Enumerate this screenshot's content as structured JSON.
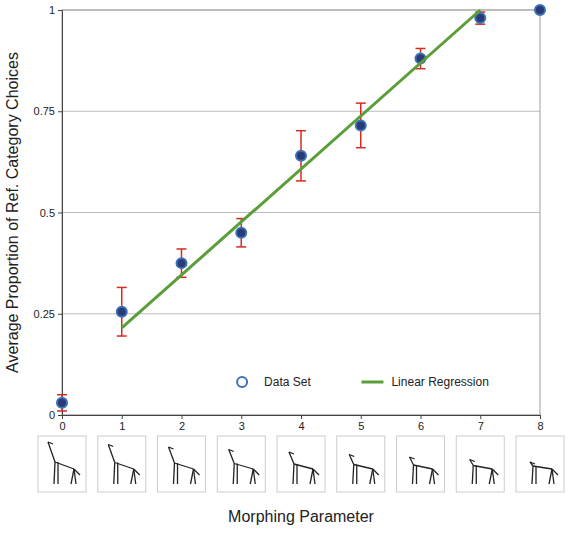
{
  "chart_data": {
    "type": "scatter",
    "x_label": "Morphing Parameter",
    "y_label": "Average Proportion of Ref. Category Choices",
    "xlim": [
      0,
      8
    ],
    "xticks": [
      0,
      1,
      2,
      3,
      4,
      5,
      6,
      7,
      8
    ],
    "ylim": [
      0,
      1
    ],
    "yticks": [
      0,
      0.25,
      0.5,
      0.75,
      1
    ],
    "grid": true,
    "legend": "bottom",
    "series": [
      {
        "name": "Data Set",
        "type": "scatter",
        "color": "#3b72b5",
        "marker": "circle",
        "x": [
          0,
          1,
          2,
          3,
          4,
          5,
          6,
          7,
          8
        ],
        "values": [
          0.03,
          0.255,
          0.375,
          0.45,
          0.64,
          0.715,
          0.88,
          0.98,
          1.0
        ],
        "errors": [
          0.02,
          0.06,
          0.035,
          0.035,
          0.062,
          0.055,
          0.025,
          0.015,
          0
        ]
      },
      {
        "name": "Linear Regression",
        "type": "line",
        "color": "#5a9e3a",
        "line_style": "solid",
        "x": [
          1,
          7
        ],
        "values": [
          0.215,
          1.0
        ]
      }
    ]
  }
}
